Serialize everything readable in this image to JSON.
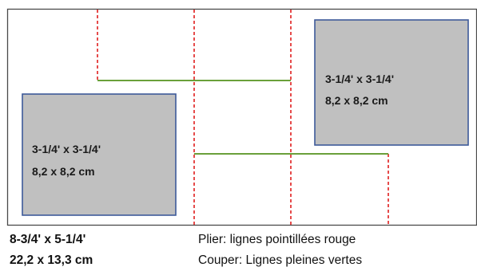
{
  "colors": {
    "panel_border": "#4a4a4a",
    "box_fill": "#c0c0c0",
    "box_border": "#3d5a99",
    "fold_line": "#e01e1e",
    "cut_line": "#6aa03a"
  },
  "boxes": [
    {
      "line1": "3-1/4' x 3-1/4'",
      "line2": "8,2 x 8,2 cm"
    },
    {
      "line1": "3-1/4' x 3-1/4'",
      "line2": "8,2 x 8,2 cm"
    }
  ],
  "dimensions": {
    "imperial": "8-3/4' x 5-1/4'",
    "metric": "22,2 x 13,3  cm"
  },
  "legend": {
    "fold": "Plier: lignes pointillées rouge",
    "cut": "Couper: Lignes pleines vertes"
  }
}
